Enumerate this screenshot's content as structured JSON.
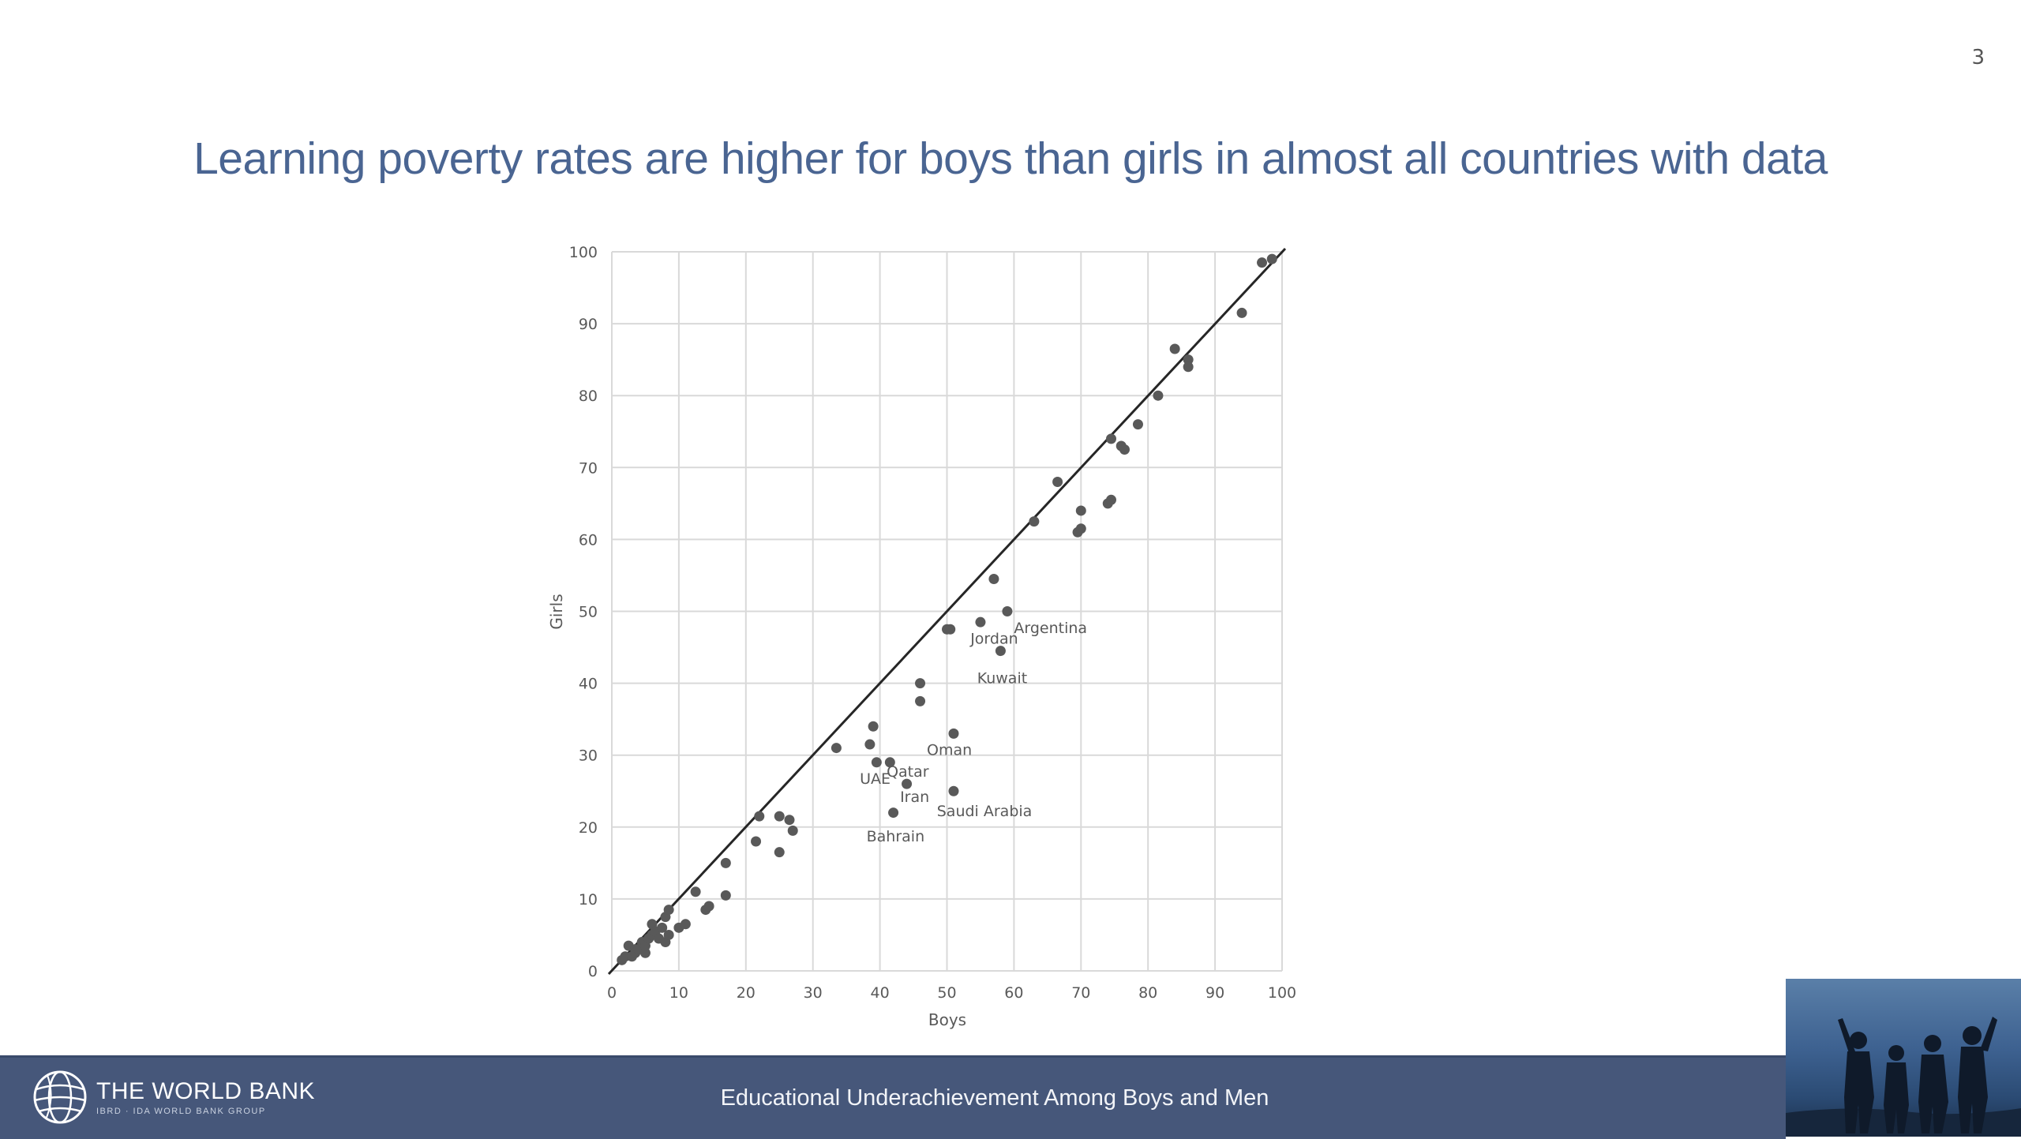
{
  "slide": {
    "number": "3",
    "title": "Learning poverty rates are higher for boys than girls in almost all countries with data",
    "footer_text": "Educational Underachievement Among Boys and Men"
  },
  "logo": {
    "name": "THE WORLD BANK",
    "sub": "IBRD · IDA   WORLD BANK GROUP"
  },
  "video": {
    "icon": "people-silhouette-icon"
  },
  "chart_data": {
    "type": "scatter",
    "title": "",
    "xlabel": "Boys",
    "ylabel": "Girls",
    "xlim": [
      0,
      100
    ],
    "ylim": [
      0,
      100
    ],
    "xticks": [
      0,
      10,
      20,
      30,
      40,
      50,
      60,
      70,
      80,
      90,
      100
    ],
    "yticks": [
      0,
      10,
      20,
      30,
      40,
      50,
      60,
      70,
      80,
      90,
      100
    ],
    "grid": true,
    "reference_line": [
      [
        0,
        0
      ],
      [
        100,
        100
      ]
    ],
    "point_color": "#595959",
    "points": [
      [
        1.5,
        1.5
      ],
      [
        2,
        2
      ],
      [
        2.5,
        3.5
      ],
      [
        3,
        2
      ],
      [
        3.5,
        3
      ],
      [
        3.5,
        2.5
      ],
      [
        4,
        3
      ],
      [
        4.5,
        4
      ],
      [
        5,
        2.5
      ],
      [
        5,
        3.5
      ],
      [
        5.5,
        4.5
      ],
      [
        6,
        5
      ],
      [
        6,
        6.5
      ],
      [
        6.5,
        5.5
      ],
      [
        7,
        4.5
      ],
      [
        7.5,
        6
      ],
      [
        8,
        4
      ],
      [
        8,
        7.5
      ],
      [
        8.5,
        8.5
      ],
      [
        8.5,
        5
      ],
      [
        10,
        6
      ],
      [
        11,
        6.5
      ],
      [
        12.5,
        11
      ],
      [
        14,
        8.5
      ],
      [
        14.5,
        9
      ],
      [
        17,
        15
      ],
      [
        17,
        10.5
      ],
      [
        21.5,
        18
      ],
      [
        22,
        21.5
      ],
      [
        25,
        16.5
      ],
      [
        25,
        21.5
      ],
      [
        26.5,
        21
      ],
      [
        27,
        19.5
      ],
      [
        33.5,
        31
      ],
      [
        38.5,
        31.5
      ],
      [
        39,
        34
      ],
      [
        39.5,
        29
      ],
      [
        41.5,
        29
      ],
      [
        42,
        22
      ],
      [
        44,
        26
      ],
      [
        46,
        40
      ],
      [
        46,
        37.5
      ],
      [
        50,
        47.5
      ],
      [
        50.5,
        47.5
      ],
      [
        51,
        33
      ],
      [
        51,
        25
      ],
      [
        55,
        48.5
      ],
      [
        57,
        54.5
      ],
      [
        58,
        44.5
      ],
      [
        59,
        50
      ],
      [
        63,
        62.5
      ],
      [
        66.5,
        68
      ],
      [
        69.5,
        61
      ],
      [
        70,
        61.5
      ],
      [
        70,
        64
      ],
      [
        74,
        65
      ],
      [
        74.5,
        65.5
      ],
      [
        74.5,
        74
      ],
      [
        76,
        73
      ],
      [
        76.5,
        72.5
      ],
      [
        78.5,
        76
      ],
      [
        81.5,
        80
      ],
      [
        84,
        86.5
      ],
      [
        86,
        85
      ],
      [
        86,
        84
      ],
      [
        94,
        91.5
      ],
      [
        97,
        98.5
      ],
      [
        98.5,
        99
      ]
    ],
    "annotations": [
      {
        "label": "Argentina",
        "x": 60,
        "y": 47
      },
      {
        "label": "Jordan",
        "x": 53.5,
        "y": 45.5
      },
      {
        "label": "Kuwait",
        "x": 54.5,
        "y": 40
      },
      {
        "label": "Oman",
        "x": 47,
        "y": 30
      },
      {
        "label": "Qatar",
        "x": 41,
        "y": 27
      },
      {
        "label": "UAE",
        "x": 37,
        "y": 26
      },
      {
        "label": "Iran",
        "x": 43,
        "y": 23.5
      },
      {
        "label": "Saudi Arabia",
        "x": 48.5,
        "y": 21.5
      },
      {
        "label": "Bahrain",
        "x": 38,
        "y": 18
      }
    ]
  }
}
